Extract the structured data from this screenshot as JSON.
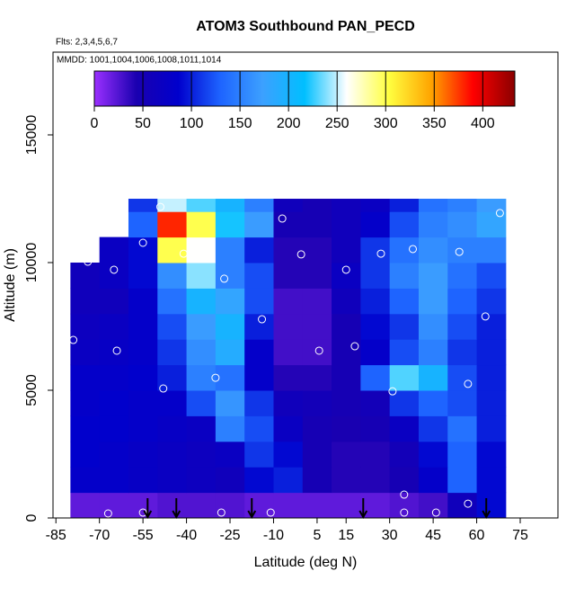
{
  "chart_data": {
    "type": "heatmap",
    "title": "ATOM3 Southbound PAN_PECD",
    "subtitle": "Flts: 2,3,4,5,6,7",
    "annotation": "MMDD: 1001,1004,1006,1008,1011,1014",
    "x_label": "Latitude (deg N)",
    "y_label": "Altitude (m)",
    "xlim": [
      -86,
      88
    ],
    "ylim": [
      0,
      18240
    ],
    "xticks": [
      -85,
      -70,
      -55,
      -40,
      -25,
      -10,
      5,
      15,
      30,
      45,
      60,
      75
    ],
    "yticks": [
      0,
      5000,
      10000,
      15000
    ],
    "x_edges": [
      -80,
      -70,
      -60,
      -50,
      -40,
      -30,
      -20,
      -10,
      0,
      10,
      20,
      30,
      40,
      50,
      60,
      70
    ],
    "y_edges": [
      0,
      1000,
      2000,
      3000,
      4000,
      5000,
      6000,
      7000,
      8000,
      9000,
      10000,
      11000,
      12000,
      12500
    ],
    "z": [
      [
        20,
        20,
        20,
        25,
        25,
        25,
        20,
        20,
        20,
        20,
        20,
        25,
        30,
        60,
        90
      ],
      [
        80,
        80,
        75,
        70,
        65,
        60,
        90,
        100,
        50,
        40,
        40,
        50,
        80,
        130,
        90
      ],
      [
        85,
        80,
        75,
        70,
        65,
        70,
        110,
        90,
        50,
        40,
        40,
        55,
        90,
        130,
        90
      ],
      [
        85,
        85,
        80,
        75,
        70,
        150,
        120,
        70,
        50,
        45,
        50,
        70,
        110,
        140,
        100
      ],
      [
        80,
        85,
        80,
        80,
        120,
        165,
        110,
        60,
        55,
        50,
        55,
        110,
        130,
        120,
        100
      ],
      [
        80,
        80,
        85,
        100,
        150,
        140,
        80,
        40,
        40,
        50,
        130,
        230,
        200,
        120,
        100
      ],
      [
        70,
        75,
        80,
        110,
        160,
        190,
        80,
        30,
        30,
        50,
        80,
        120,
        150,
        110,
        100
      ],
      [
        65,
        70,
        80,
        120,
        170,
        200,
        100,
        30,
        30,
        50,
        90,
        110,
        160,
        120,
        100
      ],
      [
        60,
        60,
        80,
        140,
        200,
        180,
        120,
        30,
        30,
        60,
        100,
        130,
        170,
        130,
        110
      ],
      [
        60,
        70,
        90,
        160,
        240,
        150,
        120,
        40,
        40,
        70,
        110,
        150,
        170,
        140,
        120
      ],
      [
        null,
        70,
        90,
        300,
        260,
        150,
        100,
        40,
        40,
        60,
        110,
        140,
        160,
        150,
        150
      ],
      [
        null,
        null,
        130,
        380,
        300,
        220,
        170,
        50,
        50,
        60,
        80,
        120,
        150,
        160,
        180
      ],
      [
        null,
        null,
        110,
        250,
        230,
        200,
        150,
        60,
        50,
        60,
        70,
        100,
        140,
        150,
        170
      ]
    ],
    "zlim": [
      0,
      433
    ],
    "colorbar_ticks": [
      0,
      50,
      100,
      150,
      200,
      250,
      300,
      350,
      400
    ],
    "colorscale": [
      "#9b30ff",
      "#1a00b0",
      "#0000cd",
      "#1e64ff",
      "#3ca0ff",
      "#00bfff",
      "#ffffff",
      "#ffff40",
      "#ffa500",
      "#ff0000",
      "#8b0000"
    ],
    "points": {
      "x": [
        -67,
        -55,
        -28,
        -11,
        35,
        46,
        35,
        57,
        -79,
        -74,
        -65,
        -55,
        -49,
        -41,
        -27,
        -14,
        -7,
        -0.5,
        5.7,
        15,
        18,
        27,
        38,
        54,
        63,
        57,
        31,
        -30,
        -64,
        -48,
        68
      ],
      "y": [
        176,
        210,
        210,
        210,
        210,
        210,
        915,
        560,
        6970,
        10035,
        9720,
        10775,
        12180,
        10350,
        9370,
        7780,
        11725,
        10320,
        6550,
        9720,
        6725,
        10350,
        10530,
        10420,
        7890,
        5250,
        4960,
        5490,
        6550,
        5070,
        11940
      ],
      "color": "#ffffff"
    },
    "arrows_x": [
      -53.4,
      -43.5,
      -17.5,
      20.9,
      63.3
    ],
    "arrow_color": "#000000"
  }
}
